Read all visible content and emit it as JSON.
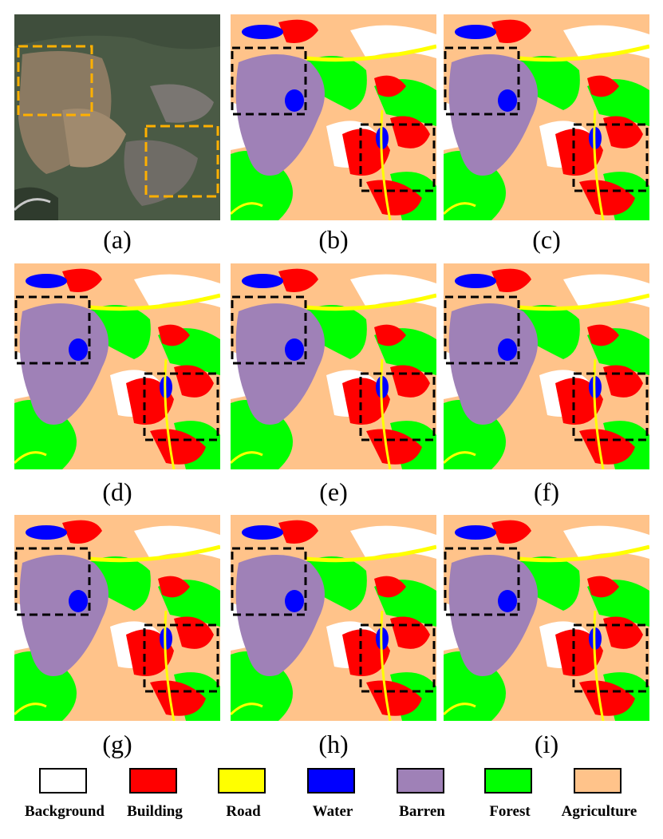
{
  "captions": [
    "(a)",
    "(b)",
    "(c)",
    "(d)",
    "(e)",
    "(f)",
    "(g)",
    "(h)",
    "(i)"
  ],
  "legend": [
    {
      "label": "Background",
      "color": "#ffffff"
    },
    {
      "label": "Building",
      "color": "#ff0000"
    },
    {
      "label": "Road",
      "color": "#ffff00"
    },
    {
      "label": "Water",
      "color": "#0000ff"
    },
    {
      "label": "Barren",
      "color": "#9f81b7"
    },
    {
      "label": "Forest",
      "color": "#00ff00"
    },
    {
      "label": "Agriculture",
      "color": "#ffc38a"
    }
  ],
  "colors": {
    "background": "#ffffff",
    "building": "#ff0000",
    "road": "#ffff00",
    "water": "#0000ff",
    "barren": "#9f81b7",
    "forest": "#00ff00",
    "agriculture": "#ffc38a",
    "highlight_box_image": "#ffb000",
    "highlight_box_map": "#000000"
  },
  "panels": [
    {
      "id": "a",
      "kind": "aerial-image"
    },
    {
      "id": "b",
      "kind": "ground-truth-map"
    },
    {
      "id": "c",
      "kind": "prediction-map"
    },
    {
      "id": "d",
      "kind": "prediction-map"
    },
    {
      "id": "e",
      "kind": "prediction-map"
    },
    {
      "id": "f",
      "kind": "prediction-map"
    },
    {
      "id": "g",
      "kind": "prediction-map"
    },
    {
      "id": "h",
      "kind": "prediction-map"
    },
    {
      "id": "i",
      "kind": "prediction-map"
    }
  ]
}
